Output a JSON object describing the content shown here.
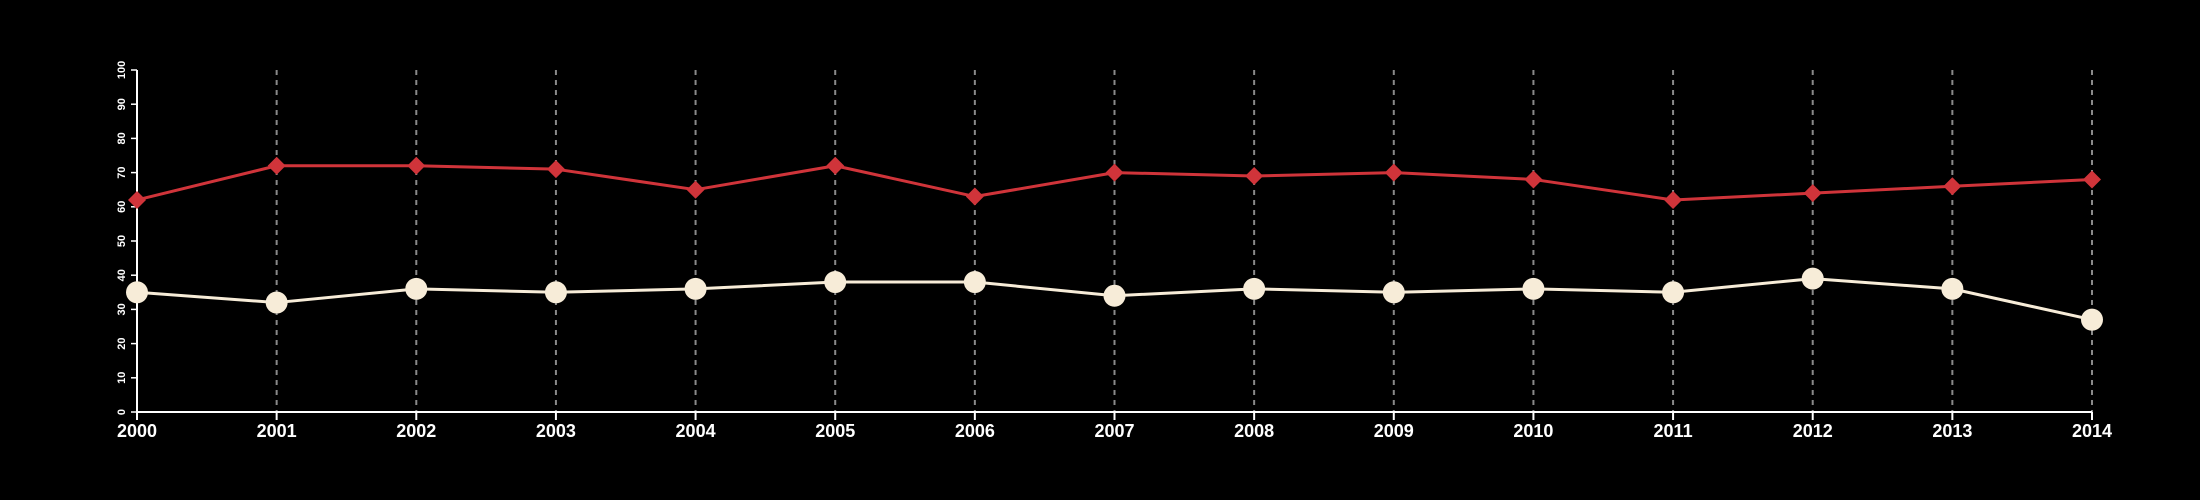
{
  "chart_data": {
    "type": "line",
    "x": [
      "2000",
      "2001",
      "2002",
      "2003",
      "2004",
      "2005",
      "2006",
      "2007",
      "2008",
      "2009",
      "2010",
      "2011",
      "2012",
      "2013",
      "2014"
    ],
    "ylim": [
      0,
      100
    ],
    "yticks": [
      0,
      10,
      20,
      30,
      40,
      50,
      60,
      70,
      80,
      90,
      100
    ],
    "grid": "vertical-dashed",
    "series": [
      {
        "marker": "diamond",
        "color": "#d0343a",
        "values": [
          62,
          72,
          72,
          71,
          65,
          72,
          63,
          70,
          69,
          70,
          68,
          62,
          64,
          66,
          68
        ]
      },
      {
        "marker": "circle",
        "color": "#f7ecd8",
        "values": [
          35,
          32,
          36,
          35,
          36,
          38,
          38,
          34,
          36,
          35,
          36,
          35,
          39,
          36,
          27
        ]
      }
    ]
  }
}
